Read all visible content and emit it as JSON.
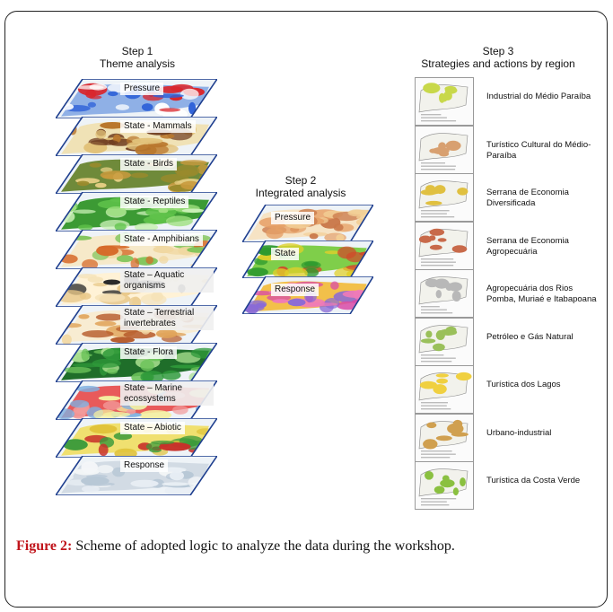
{
  "step1": {
    "title": "Step 1",
    "subtitle": "Theme analysis",
    "layers": [
      {
        "label": "Pressure",
        "colors": [
          "#d9262c",
          "#2f62d8",
          "#ffffff",
          "#8fb0e6"
        ]
      },
      {
        "label": "State - Mammals",
        "colors": [
          "#b9772d",
          "#e2c27a",
          "#6e3b1f",
          "#f0e2b6"
        ]
      },
      {
        "label": "State - Birds",
        "colors": [
          "#c89a3d",
          "#9a8a2c",
          "#e6cf84",
          "#6f8a3a"
        ]
      },
      {
        "label": "State - Reptiles",
        "colors": [
          "#5fc24a",
          "#9ddf7d",
          "#c9efb6",
          "#3c9a34"
        ]
      },
      {
        "label": "State - Amphibians",
        "colors": [
          "#f0d7a0",
          "#7fc45a",
          "#d66a2a",
          "#f6e9c9"
        ]
      },
      {
        "label": "State – Aquatic organisms",
        "two": true,
        "colors": [
          "#f5e2b8",
          "#e8c787",
          "#2b2b2b",
          "#fff2d6"
        ]
      },
      {
        "label": "State – Terrestrial invertebrates",
        "two": true,
        "colors": [
          "#f2d9a6",
          "#e0a45a",
          "#b65a2a",
          "#f8ecd2"
        ]
      },
      {
        "label": "State - Flora",
        "colors": [
          "#2f9a3a",
          "#6cc35a",
          "#a8df8e",
          "#1f6e2a"
        ]
      },
      {
        "label": "State – Marine ecossystems",
        "two": true,
        "colors": [
          "#f29a9a",
          "#7fb0e0",
          "#f4f0a0",
          "#e85a5a"
        ]
      },
      {
        "label": "State – Abiotic",
        "colors": [
          "#e0c23a",
          "#3a9a3a",
          "#c8302a",
          "#f0e070"
        ]
      },
      {
        "label": "Response",
        "colors": [
          "#e8eef4",
          "#b7c7d6",
          "#f4f6f8",
          "#d2dbe4"
        ]
      }
    ]
  },
  "step2": {
    "title": "Step 2",
    "subtitle": "Integrated analysis",
    "layers": [
      {
        "label": "Pressure",
        "colors": [
          "#e6a067",
          "#f2cf96",
          "#c9784a",
          "#f6e3c4"
        ]
      },
      {
        "label": "State",
        "colors": [
          "#2e9a2e",
          "#e0d02a",
          "#d04a2a",
          "#7fce4a"
        ]
      },
      {
        "label": "Response",
        "colors": [
          "#d94aa8",
          "#8a6ad6",
          "#f07ab8",
          "#f2c04a"
        ]
      }
    ]
  },
  "step3": {
    "title": "Step 3",
    "subtitle": "Strategies and actions by region",
    "regions": [
      {
        "name": "Industrial  do Médio Paraíba",
        "color": "#c8d84a"
      },
      {
        "name": "Turístico Cultural do Médio-Paraíba",
        "color": "#d8a070"
      },
      {
        "name": "Serrana de Economia Diversificada",
        "color": "#e0c040"
      },
      {
        "name": "Serrana de Economia Agropecuária",
        "color": "#c86a4a"
      },
      {
        "name": "Agropecuária dos Rios Pomba, Muriaé e Itabapoana",
        "color": "#b8b8b8"
      },
      {
        "name": "Petróleo e Gás Natural",
        "color": "#9ac05a"
      },
      {
        "name": "Turística dos Lagos",
        "color": "#f0d040"
      },
      {
        "name": "Urbano-industrial",
        "color": "#d0a050"
      },
      {
        "name": "Turística da Costa Verde",
        "color": "#8ac040"
      }
    ]
  },
  "caption": {
    "lead": "Figure 2:",
    "text": " Scheme of adopted logic to analyze the data during the workshop."
  }
}
